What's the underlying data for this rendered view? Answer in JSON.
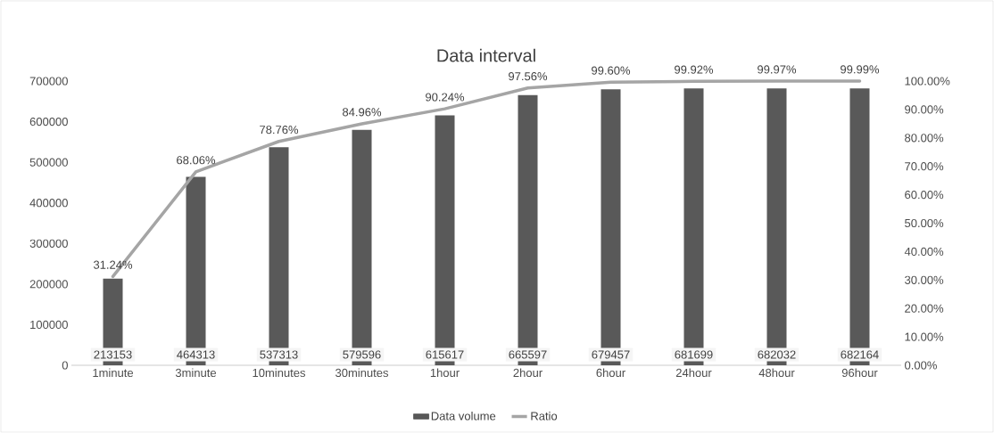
{
  "chart_data": {
    "type": "bar",
    "title": "Data interval",
    "categories": [
      "1minute",
      "3minute",
      "10minutes",
      "30minutes",
      "1hour",
      "2hour",
      "6hour",
      "24hour",
      "48hour",
      "96hour"
    ],
    "series": [
      {
        "name": "Data volume",
        "color": "#595959",
        "values": [
          213153,
          464313,
          537313,
          579596,
          615617,
          665597,
          679457,
          681699,
          682032,
          682164
        ]
      },
      {
        "name": "Ratio",
        "type": "line",
        "axis": "y2",
        "color": "#a5a5a5",
        "values": [
          31.24,
          68.06,
          78.76,
          84.96,
          90.24,
          97.56,
          99.6,
          99.92,
          99.97,
          99.99
        ],
        "value_labels": [
          "31.24%",
          "68.06%",
          "78.76%",
          "84.96%",
          "90.24%",
          "97.56%",
          "99.60%",
          "99.92%",
          "99.97%",
          "99.99%"
        ]
      }
    ],
    "data_labels": true,
    "ylim": [
      0,
      700000
    ],
    "yticks": [
      0,
      100000,
      200000,
      300000,
      400000,
      500000,
      600000,
      700000
    ],
    "y2lim": [
      0,
      100
    ],
    "y2ticks": [
      {
        "value": 0,
        "label": "0.00%"
      },
      {
        "value": 10,
        "label": "10.00%"
      },
      {
        "value": 20,
        "label": "20.00%"
      },
      {
        "value": 30,
        "label": "30.00%"
      },
      {
        "value": 40,
        "label": "40.00%"
      },
      {
        "value": 50,
        "label": "50.00%"
      },
      {
        "value": 60,
        "label": "60.00%"
      },
      {
        "value": 70,
        "label": "70.00%"
      },
      {
        "value": 80,
        "label": "80.00%"
      },
      {
        "value": 90,
        "label": "90.00%"
      },
      {
        "value": 100,
        "label": "100.00%"
      }
    ],
    "legend": "bottom"
  }
}
